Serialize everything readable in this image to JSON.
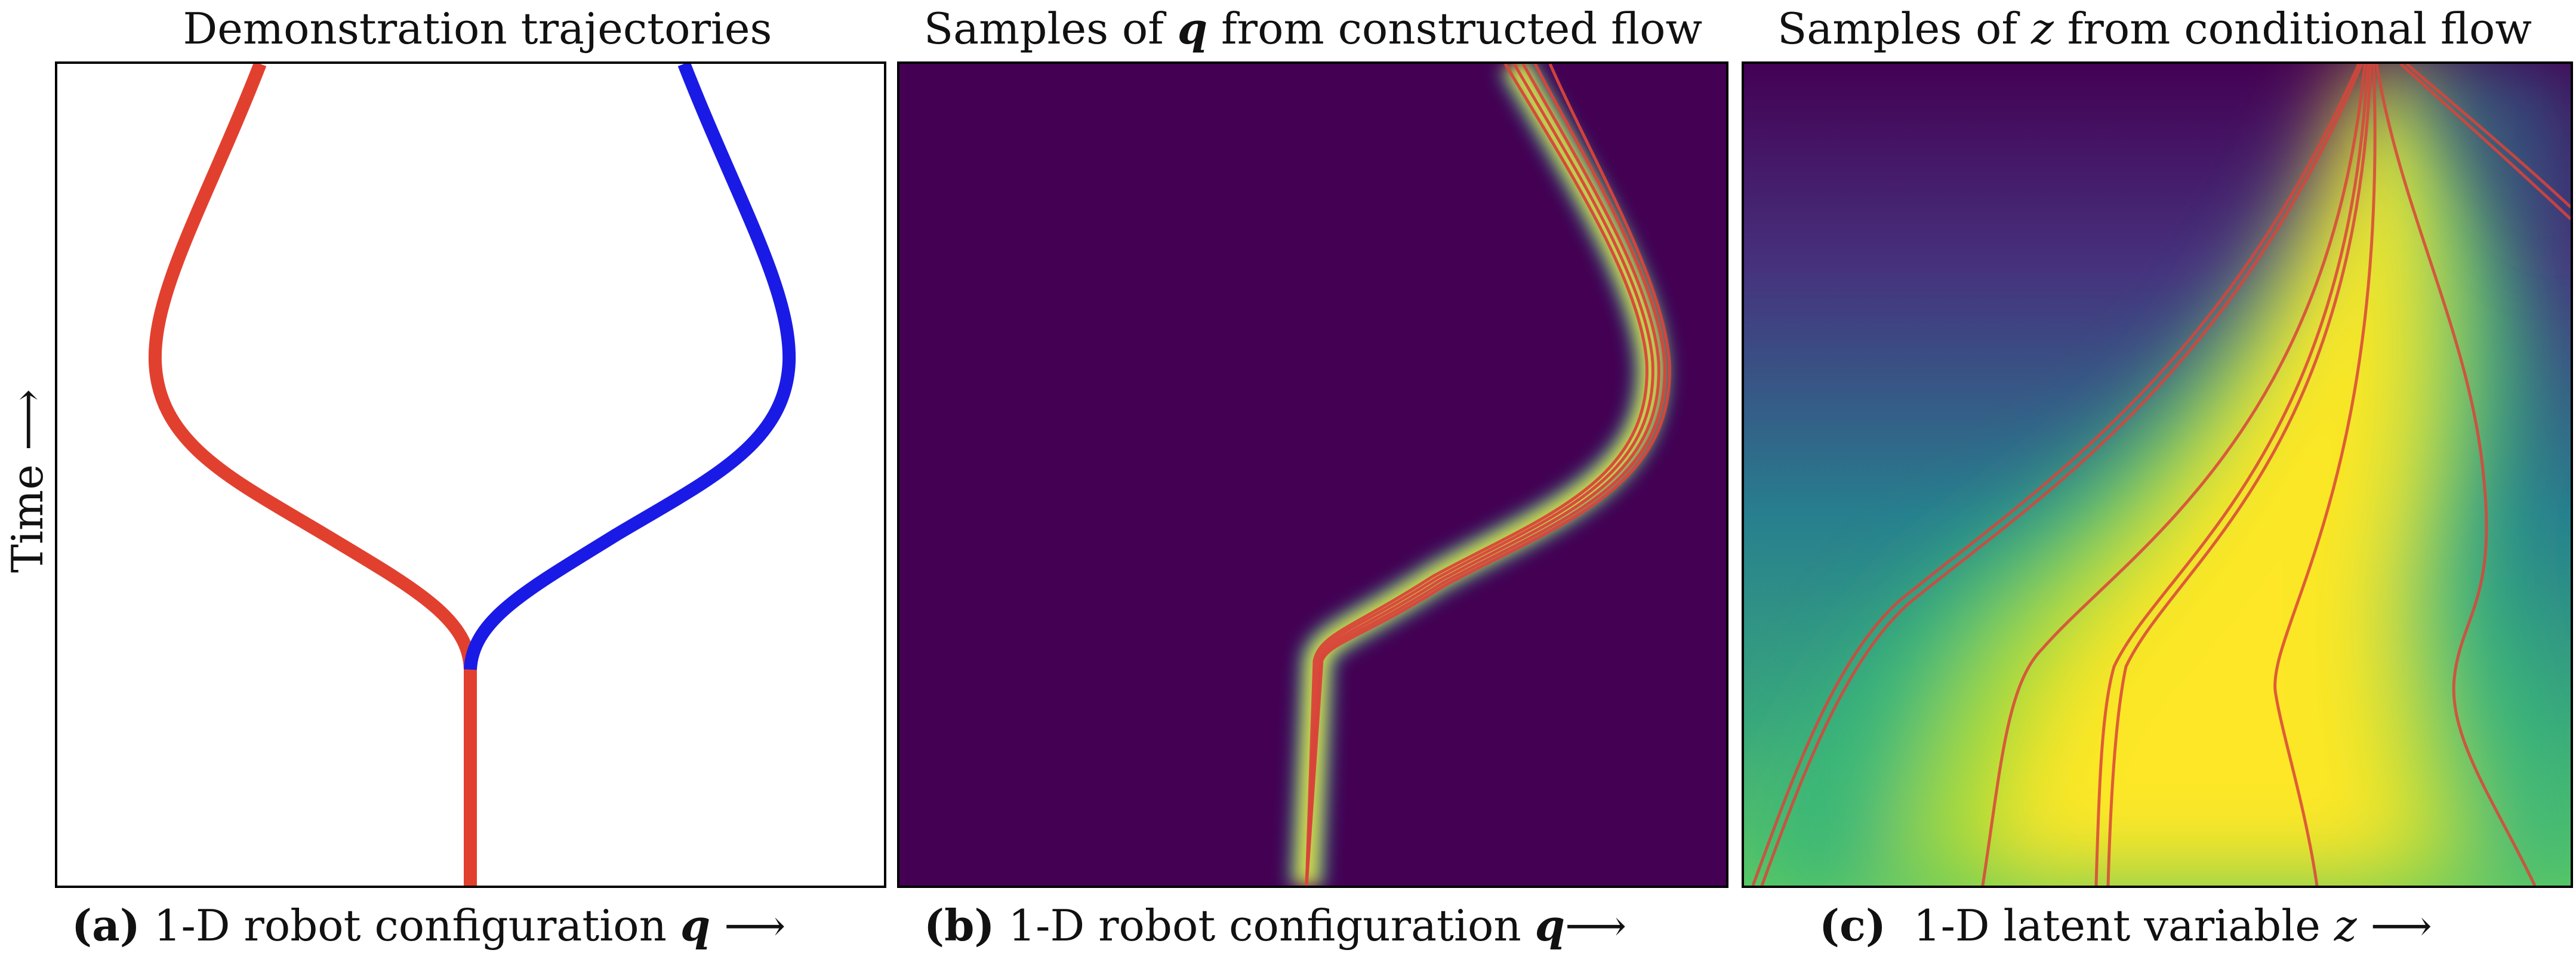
{
  "panels": [
    {
      "title_parts": [
        "Demonstration trajectories"
      ],
      "caption": {
        "letter": "(a)",
        "text": " 1-D robot configuration ",
        "symbol": "q",
        "arrow": " ⟶"
      }
    },
    {
      "title_parts": [
        "Samples of ",
        "q",
        " from constructed flow"
      ],
      "caption": {
        "letter": "(b)",
        "text": " 1-D robot configuration ",
        "symbol": "q",
        "arrow": "⟶"
      }
    },
    {
      "title_parts": [
        "Samples of ",
        "z",
        " from conditional flow"
      ],
      "caption": {
        "letter": "(c)",
        "text": "  1-D latent variable ",
        "symbol": "z",
        "arrow": " ⟶"
      }
    }
  ],
  "ylabel": "Time ⟶",
  "colors": {
    "red": "#e2402f",
    "blue": "#1a1ae6",
    "viridis_dark": "#440154",
    "viridis_yellow": "#fde725",
    "sample_line": "#d9443a"
  }
}
